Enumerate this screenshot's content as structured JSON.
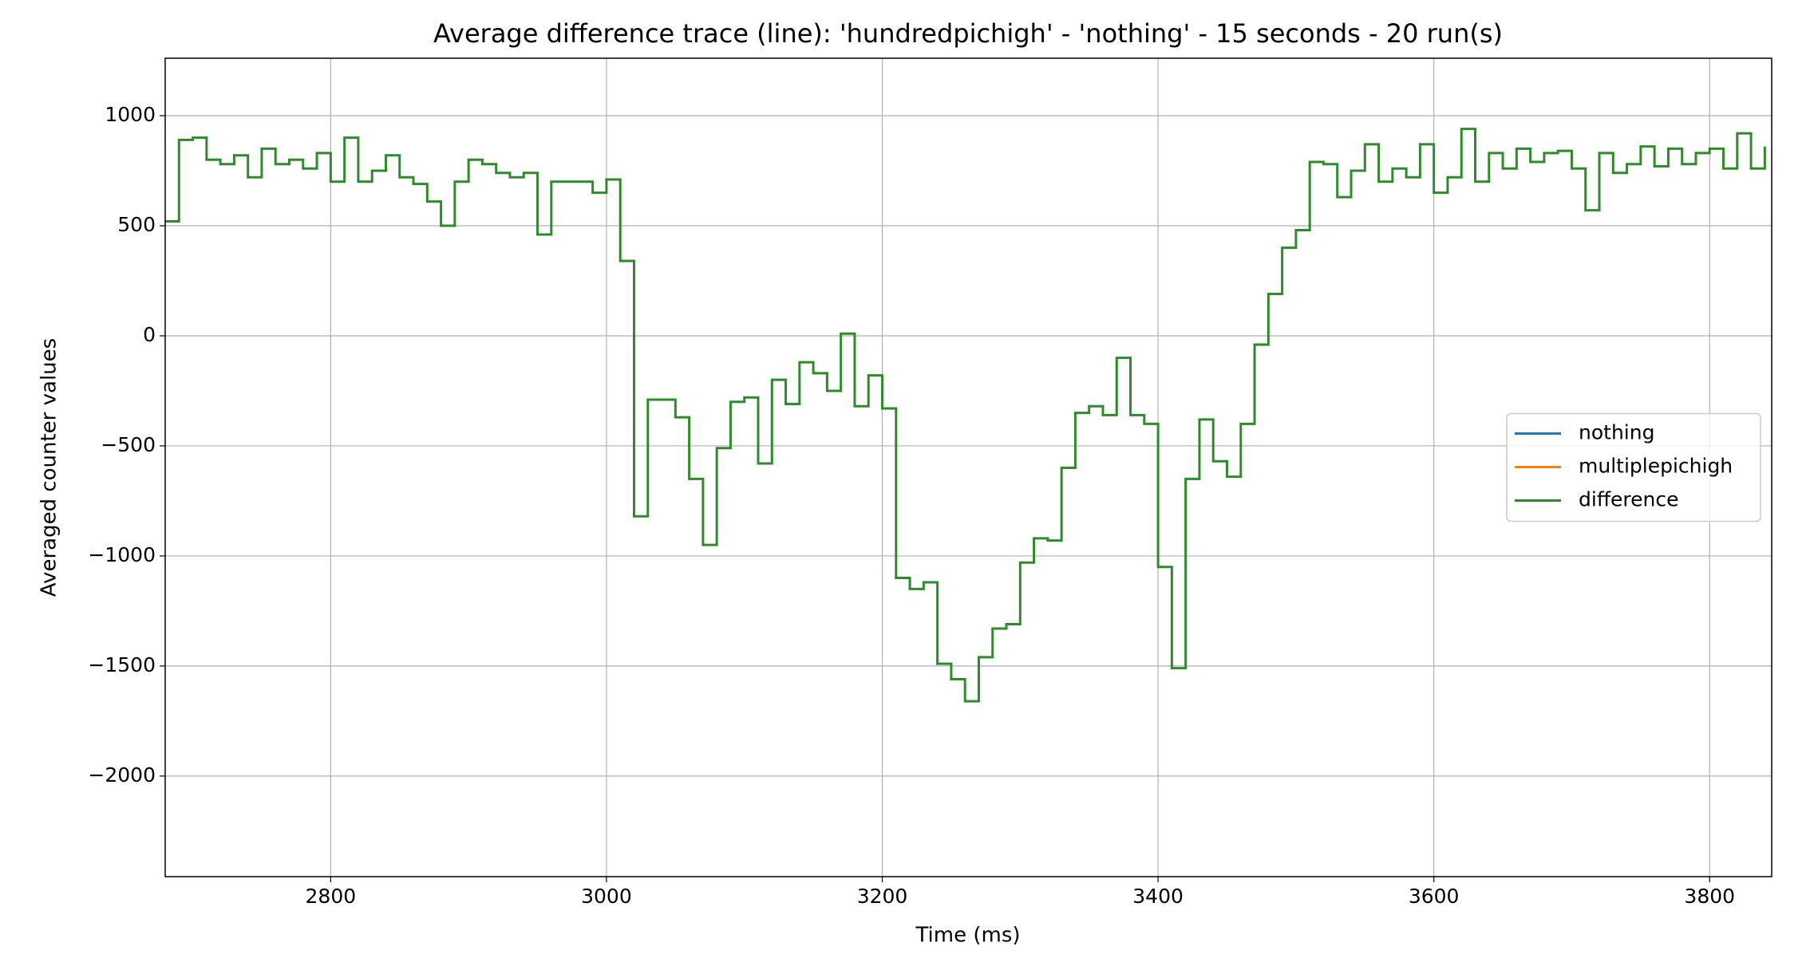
{
  "chart_data": {
    "type": "line",
    "step": "post",
    "title": "Average difference trace (line): 'hundredpichigh' - 'nothing' - 15 seconds - 20 run(s)",
    "x_label": "Time (ms)",
    "y_label": "Averaged counter values",
    "x": [
      2680,
      2690,
      2700,
      2710,
      2720,
      2730,
      2740,
      2750,
      2760,
      2770,
      2780,
      2790,
      2800,
      2810,
      2820,
      2830,
      2840,
      2850,
      2860,
      2870,
      2880,
      2890,
      2900,
      2910,
      2920,
      2930,
      2940,
      2950,
      2960,
      2970,
      2980,
      2990,
      3000,
      3010,
      3020,
      3030,
      3040,
      3050,
      3060,
      3070,
      3080,
      3090,
      3100,
      3110,
      3120,
      3130,
      3140,
      3150,
      3160,
      3170,
      3180,
      3190,
      3200,
      3210,
      3220,
      3230,
      3240,
      3250,
      3260,
      3270,
      3280,
      3290,
      3300,
      3310,
      3320,
      3330,
      3340,
      3350,
      3360,
      3370,
      3380,
      3390,
      3400,
      3410,
      3420,
      3430,
      3440,
      3450,
      3460,
      3470,
      3480,
      3490,
      3500,
      3510,
      3520,
      3530,
      3540,
      3550,
      3560,
      3570,
      3580,
      3590,
      3600,
      3610,
      3620,
      3630,
      3640,
      3650,
      3660,
      3670,
      3680,
      3690,
      3700,
      3710,
      3720,
      3730,
      3740,
      3750,
      3760,
      3770,
      3780,
      3790,
      3800,
      3810,
      3820,
      3830,
      3840
    ],
    "series": [
      {
        "name": "nothing",
        "color": "#1f77b4",
        "values": [
          null,
          null,
          null,
          null,
          null,
          null,
          null,
          null,
          null,
          null,
          null,
          null,
          null,
          null,
          null,
          null,
          null,
          null,
          null,
          null,
          null,
          null,
          null,
          null,
          null,
          null,
          null,
          null,
          null,
          null,
          null,
          null,
          null,
          null,
          null,
          null,
          null,
          null,
          null,
          null,
          null,
          null,
          null,
          null,
          null,
          null,
          null,
          null,
          null,
          null,
          null,
          null,
          null,
          null,
          null,
          null,
          null,
          null,
          null,
          null,
          null,
          null,
          null,
          null,
          null,
          null,
          null,
          null,
          null,
          null,
          null,
          null,
          null,
          null,
          null,
          null,
          null,
          null,
          null,
          null,
          null,
          null,
          null,
          null,
          null,
          null,
          null,
          null,
          null,
          null,
          null,
          null,
          null,
          null,
          null,
          null,
          null,
          null,
          null,
          null,
          null,
          null,
          null,
          null,
          null,
          null,
          null,
          null,
          null,
          null,
          null,
          null,
          null,
          null,
          null,
          null,
          null
        ]
      },
      {
        "name": "multiplepichigh",
        "color": "#ff7f0e",
        "values": [
          null,
          null,
          null,
          null,
          null,
          null,
          null,
          null,
          null,
          null,
          null,
          null,
          null,
          null,
          null,
          null,
          null,
          null,
          null,
          null,
          null,
          null,
          null,
          null,
          null,
          null,
          null,
          null,
          null,
          null,
          null,
          null,
          null,
          null,
          null,
          null,
          null,
          null,
          null,
          null,
          null,
          null,
          null,
          null,
          null,
          null,
          null,
          null,
          null,
          null,
          null,
          null,
          null,
          null,
          null,
          null,
          null,
          null,
          null,
          null,
          null,
          null,
          null,
          null,
          null,
          null,
          null,
          null,
          null,
          null,
          null,
          null,
          null,
          null,
          null,
          null,
          null,
          null,
          null,
          null,
          null,
          null,
          null,
          null,
          null,
          null,
          null,
          null,
          null,
          null,
          null,
          null,
          null,
          null,
          null,
          null,
          null,
          null,
          null,
          null,
          null,
          null,
          null,
          null,
          null,
          null,
          null,
          null,
          null,
          null,
          null,
          null,
          null,
          null,
          null,
          null,
          null
        ]
      },
      {
        "name": "difference",
        "color": "#2e8b2a",
        "values": [
          520,
          890,
          900,
          800,
          780,
          820,
          720,
          850,
          780,
          800,
          760,
          830,
          700,
          900,
          700,
          750,
          820,
          720,
          690,
          610,
          500,
          700,
          800,
          780,
          740,
          720,
          740,
          460,
          700,
          700,
          700,
          650,
          710,
          340,
          -820,
          -290,
          -290,
          -370,
          -650,
          -950,
          -510,
          -300,
          -280,
          -580,
          -200,
          -310,
          -120,
          -170,
          -250,
          10,
          -320,
          -180,
          -330,
          -1100,
          -1150,
          -1120,
          -1490,
          -1560,
          -1660,
          -1460,
          -1330,
          -1310,
          -1030,
          -920,
          -930,
          -600,
          -350,
          -320,
          -360,
          -100,
          -360,
          -400,
          -1050,
          -1510,
          -650,
          -380,
          -570,
          -640,
          -400,
          -40,
          190,
          400,
          480,
          790,
          780,
          630,
          750,
          870,
          700,
          760,
          720,
          870,
          650,
          720,
          940,
          700,
          830,
          760,
          850,
          790,
          830,
          840,
          760,
          570,
          830,
          740,
          780,
          860,
          770,
          850,
          780,
          830,
          850,
          760,
          920,
          760,
          860
        ]
      }
    ],
    "xlim": [
      2680,
      3845
    ],
    "ylim": [
      -2457,
      1261
    ],
    "xticks": [
      2800,
      3000,
      3200,
      3400,
      3600,
      3800
    ],
    "yticks": [
      {
        "value": -2000,
        "label": "−2000"
      },
      {
        "value": -1500,
        "label": "−1500"
      },
      {
        "value": -1000,
        "label": "−1000"
      },
      {
        "value": -500,
        "label": "−500"
      },
      0,
      500,
      1000
    ],
    "grid": true,
    "legend": "center right"
  }
}
